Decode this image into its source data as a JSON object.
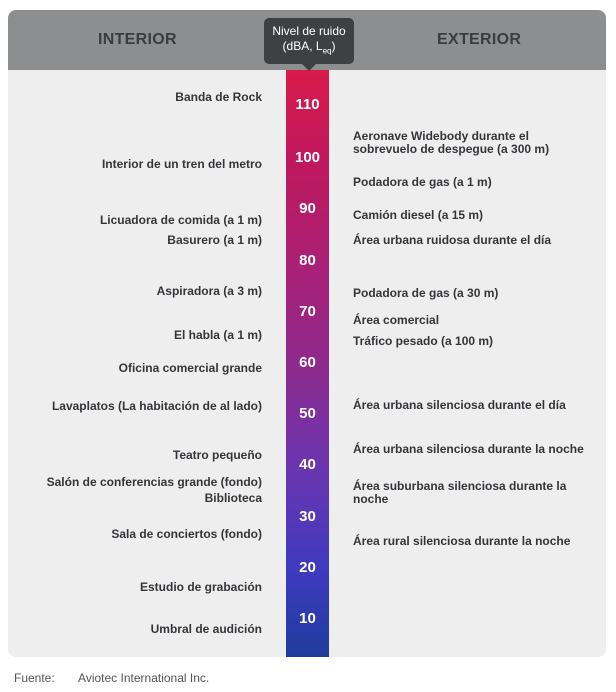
{
  "header": {
    "left_title": "INTERIOR",
    "right_title": "EXTERIOR",
    "tooltip_line1": "Nivel de ruido",
    "tooltip_line2_pre": "(dBA, L",
    "tooltip_sub": "eq",
    "tooltip_line2_post": ")"
  },
  "scale": {
    "ticks": [
      "110",
      "100",
      "90",
      "80",
      "70",
      "60",
      "50",
      "40",
      "30",
      "20",
      "10"
    ],
    "bar_colors": [
      "#d81b4a",
      "#a82178",
      "#6a35b0",
      "#1e3c9c"
    ]
  },
  "interior": [
    {
      "line1": "Banda de Rock"
    },
    {
      "line1": "Interior de un tren del metro"
    },
    {
      "line1": "Licuadora de comida (a 1 m)"
    },
    {
      "line1": "Basurero (a 1 m)"
    },
    {
      "line1": "Aspiradora (a 3 m)"
    },
    {
      "line1": "El habla (a 1 m)"
    },
    {
      "line1": "Oficina comercial grande"
    },
    {
      "line1": "Lavaplatos (La habitación de al lado)"
    },
    {
      "line1": "Teatro pequeño"
    },
    {
      "line1": "Salón de conferencias grande (fondo)",
      "line2": "Biblioteca"
    },
    {
      "line1": "Sala de conciertos (fondo)"
    },
    {
      "line1": "Estudio de grabación"
    },
    {
      "line1": "Umbral de audición"
    }
  ],
  "exterior": [
    {
      "line1": "Aeronave Widebody durante el",
      "line2": "sobrevuelo de despegue (a 300 m)"
    },
    {
      "line1": "Podadora de gas (a 1 m)"
    },
    {
      "line1": "Camión diesel (a 15 m)"
    },
    {
      "line1": "Área urbana ruidosa durante el día"
    },
    {
      "line1": "Podadora de gas (a 30 m)"
    },
    {
      "line1": "Área comercial"
    },
    {
      "line1": "Tráfico pesado (a 100 m)"
    },
    {
      "line1": "Área urbana silenciosa durante el día"
    },
    {
      "line1": "Área urbana silenciosa durante la noche"
    },
    {
      "line1": "Área suburbana silenciosa durante la",
      "line2": "noche"
    },
    {
      "line1": "Área rural silenciosa durante la noche"
    }
  ],
  "footer": {
    "source_label": "Fuente:",
    "source_value": "Aviotec International Inc."
  }
}
